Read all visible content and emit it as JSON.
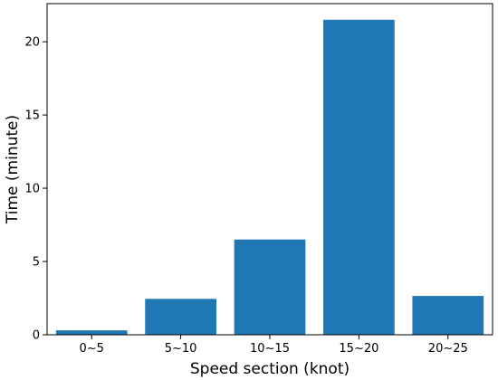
{
  "chart_data": {
    "type": "bar",
    "title": "",
    "xlabel": "Speed section (knot)",
    "ylabel": "Time (minute)",
    "categories": [
      "0~5",
      "5~10",
      "10~15",
      "15~20",
      "20~25"
    ],
    "values": [
      0.3,
      2.45,
      6.5,
      21.5,
      2.65
    ],
    "ylim": [
      0,
      22.6
    ],
    "yticks": [
      0,
      5,
      10,
      15,
      20
    ],
    "ytick_labels": [
      "0",
      "5",
      "10",
      "15",
      "20"
    ],
    "grid": false,
    "legend": "none",
    "bar_color": "#1f77b4"
  }
}
